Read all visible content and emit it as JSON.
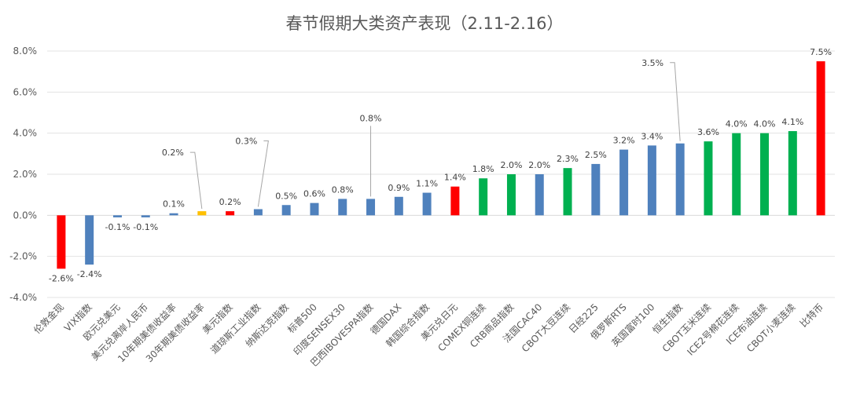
{
  "chart_data": {
    "type": "bar",
    "title": "春节假期大类资产表现（2.11-2.16）",
    "xlabel": "",
    "ylabel": "",
    "ylim": [
      -4.0,
      8.0
    ],
    "yticks": [
      "8.0%",
      "6.0%",
      "4.0%",
      "2.0%",
      "0.0%",
      "-2.0%",
      "-4.0%"
    ],
    "ytick_values": [
      8,
      6,
      4,
      2,
      0,
      -2,
      -4
    ],
    "grid": true,
    "legend": "none",
    "colors": {
      "blue": "#4f81bd",
      "red": "#ff0000",
      "green": "#00b050",
      "yellow": "#ffc000"
    },
    "categories": [
      "伦敦金现",
      "VIX指数",
      "欧元兑美元",
      "美元兑离岸人民币",
      "10年期美债收益率",
      "30年期美债收益率",
      "美元指数",
      "道琼斯工业指数",
      "纳斯达克指数",
      "标普500",
      "印度SENSEX30",
      "巴西IBOVESPA指数",
      "德国DAX",
      "韩国综合指数",
      "美元兑日元",
      "COMEX铜连续",
      "CRB商品指数",
      "法国CAC40",
      "CBOT大豆连续",
      "日经225",
      "俄罗斯RTS",
      "英国富时100",
      "恒生指数",
      "CBOT玉米连续",
      "ICE2号棉花连续",
      "ICE布油连续",
      "CBOT小麦连续",
      "比特币"
    ],
    "values": [
      -2.6,
      -2.4,
      -0.1,
      -0.1,
      0.1,
      0.2,
      0.2,
      0.3,
      0.5,
      0.6,
      0.8,
      0.8,
      0.9,
      1.1,
      1.4,
      1.8,
      2.0,
      2.0,
      2.3,
      2.5,
      3.2,
      3.4,
      3.5,
      3.6,
      4.0,
      4.0,
      4.1,
      7.5
    ],
    "labels": [
      "-2.6%",
      "-2.4%",
      "-0.1%",
      "-0.1%",
      "0.1%",
      "0.2%",
      "0.2%",
      "0.3%",
      "0.5%",
      "0.6%",
      "0.8%",
      "0.8%",
      "0.9%",
      "1.1%",
      "1.4%",
      "1.8%",
      "2.0%",
      "2.0%",
      "2.3%",
      "2.5%",
      "3.2%",
      "3.4%",
      "3.5%",
      "3.6%",
      "4.0%",
      "4.0%",
      "4.1%",
      "7.5%"
    ],
    "bar_colors": [
      "red",
      "blue",
      "blue",
      "blue",
      "blue",
      "yellow",
      "red",
      "blue",
      "blue",
      "blue",
      "blue",
      "blue",
      "blue",
      "blue",
      "red",
      "green",
      "green",
      "blue",
      "green",
      "blue",
      "blue",
      "blue",
      "blue",
      "green",
      "green",
      "green",
      "green",
      "red"
    ]
  }
}
